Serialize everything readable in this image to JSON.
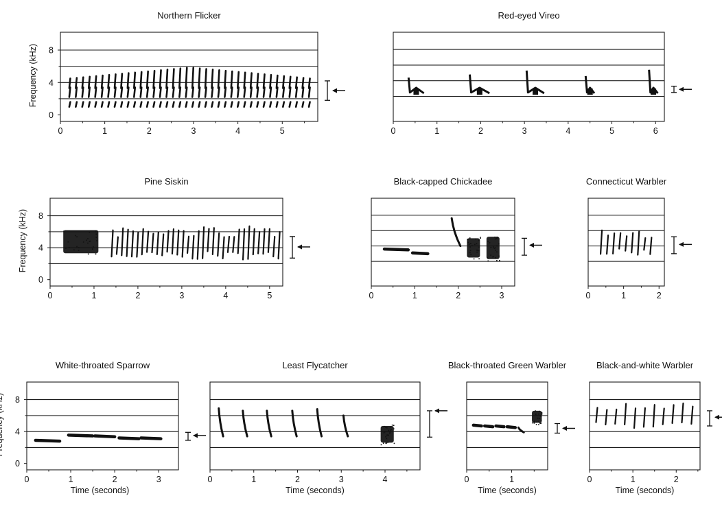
{
  "figure": {
    "ylabel": "Frequency (kHz)",
    "xlabel": "Time (seconds)",
    "colors": {
      "ink": "#111111",
      "panel_line": "#1a1a1a",
      "background": "#ffffff"
    }
  },
  "chart_data": [
    {
      "type": "spectrogram",
      "title": "Northern Flicker",
      "xlim": [
        0,
        5.8
      ],
      "ylim": [
        -0.8,
        10.2
      ],
      "xticks": [
        "0",
        "1",
        "2",
        "3",
        "4",
        "5"
      ],
      "yticks": [
        "0",
        "4",
        "8"
      ],
      "ylabel": "Frequency (kHz)",
      "xlabel": "",
      "lines": [
        2,
        4,
        6,
        8
      ],
      "range_bar": [
        1.8,
        4.2
      ],
      "arrow_at": 3.0,
      "elements": [
        {
          "kind": "repeated-notes",
          "t_start": 0.2,
          "t_end": 5.6,
          "count": 38,
          "f_low": 1.0,
          "f_high": 4.5,
          "f_peak_mid": 6.0
        }
      ]
    },
    {
      "type": "spectrogram",
      "title": "Red-eyed Vireo",
      "xlim": [
        0,
        6.2
      ],
      "ylim": [
        -1.2,
        10.2
      ],
      "xticks": [
        "0",
        "1",
        "2",
        "3",
        "4",
        "5",
        "6"
      ],
      "yticks": [],
      "ylabel": "",
      "xlabel": "",
      "lines": [
        2,
        4,
        6,
        8
      ],
      "range_bar": [
        2.5,
        3.3
      ],
      "arrow_at": 2.9,
      "elements": [
        {
          "kind": "phrase",
          "t": 0.35,
          "dur": 0.35,
          "f_low": 2.2,
          "f_high": 4.4
        },
        {
          "kind": "phrase",
          "t": 1.75,
          "dur": 0.45,
          "f_low": 2.2,
          "f_high": 4.8
        },
        {
          "kind": "phrase",
          "t": 3.05,
          "dur": 0.4,
          "f_low": 2.2,
          "f_high": 5.3
        },
        {
          "kind": "phrase",
          "t": 4.4,
          "dur": 0.2,
          "f_low": 2.2,
          "f_high": 4.6
        },
        {
          "kind": "phrase",
          "t": 5.85,
          "dur": 0.2,
          "f_low": 2.2,
          "f_high": 5.4
        }
      ]
    },
    {
      "type": "spectrogram",
      "title": "Pine Siskin",
      "xlim": [
        0,
        5.3
      ],
      "ylim": [
        -0.8,
        10.2
      ],
      "xticks": [
        "0",
        "1",
        "2",
        "3",
        "4",
        "5"
      ],
      "yticks": [
        "0",
        "4",
        "8"
      ],
      "ylabel": "Frequency (kHz)",
      "xlabel": "",
      "lines": [
        2,
        4,
        6,
        8
      ],
      "range_bar": [
        2.7,
        5.4
      ],
      "arrow_at": 4.1,
      "elements": [
        {
          "kind": "blob",
          "t": 0.3,
          "dur": 0.8,
          "f_low": 3.3,
          "f_high": 6.2
        },
        {
          "kind": "notes",
          "t_start": 1.4,
          "t_end": 5.2,
          "count": 34,
          "f_low": 2.5,
          "f_high": 6.7
        }
      ]
    },
    {
      "type": "spectrogram",
      "title": "Black-capped Chickadee",
      "xlim": [
        0,
        3.3
      ],
      "ylim": [
        -1.2,
        10.2
      ],
      "xticks": [
        "0",
        "1",
        "2",
        "3"
      ],
      "yticks": [],
      "ylabel": "",
      "xlabel": "",
      "lines": [
        2,
        4,
        6,
        8
      ],
      "range_bar": [
        2.8,
        5.0
      ],
      "arrow_at": 4.1,
      "elements": [
        {
          "kind": "whistle",
          "t": 0.3,
          "dur": 0.55,
          "f": 3.6
        },
        {
          "kind": "whistle",
          "t": 0.95,
          "dur": 0.35,
          "f": 3.1
        },
        {
          "kind": "sweep",
          "t": 1.85,
          "dur": 0.2,
          "f_low": 4.0,
          "f_high": 7.6
        },
        {
          "kind": "blob",
          "t": 2.2,
          "dur": 0.3,
          "f_low": 2.5,
          "f_high": 5.0
        },
        {
          "kind": "blob",
          "t": 2.65,
          "dur": 0.3,
          "f_low": 2.3,
          "f_high": 5.2
        }
      ]
    },
    {
      "type": "spectrogram",
      "title": "Connecticut Warbler",
      "xlim": [
        0,
        2.15
      ],
      "ylim": [
        -1.2,
        10.2
      ],
      "xticks": [
        "0",
        "1",
        "2"
      ],
      "yticks": [],
      "ylabel": "",
      "xlabel": "",
      "lines": [
        2,
        4,
        6,
        8
      ],
      "range_bar": [
        3.0,
        5.2
      ],
      "arrow_at": 4.2,
      "elements": [
        {
          "kind": "notes",
          "t_start": 0.35,
          "t_end": 1.75,
          "count": 9,
          "f_low": 2.8,
          "f_high": 6.2
        }
      ]
    },
    {
      "type": "spectrogram",
      "title": "White-throated Sparrow",
      "xlim": [
        0,
        3.45
      ],
      "ylim": [
        -0.8,
        10.2
      ],
      "xticks": [
        "0",
        "1",
        "2",
        "3"
      ],
      "yticks": [
        "0",
        "4",
        "8"
      ],
      "ylabel": "Frequency (kHz)",
      "xlabel": "Time (seconds)",
      "lines": [
        2,
        4,
        6,
        8
      ],
      "range_bar": [
        2.9,
        3.9
      ],
      "arrow_at": 3.5,
      "elements": [
        {
          "kind": "whistle",
          "t": 0.2,
          "dur": 0.55,
          "f": 2.9
        },
        {
          "kind": "whistle",
          "t": 0.95,
          "dur": 0.55,
          "f": 3.55
        },
        {
          "kind": "whistle",
          "t": 1.55,
          "dur": 0.45,
          "f": 3.45
        },
        {
          "kind": "whistle",
          "t": 2.1,
          "dur": 0.45,
          "f": 3.2
        },
        {
          "kind": "whistle",
          "t": 2.6,
          "dur": 0.45,
          "f": 3.2
        }
      ]
    },
    {
      "type": "spectrogram",
      "title": "Least Flycatcher",
      "xlim": [
        0,
        4.8
      ],
      "ylim": [
        -0.8,
        10.2
      ],
      "xticks": [
        "0",
        "1",
        "2",
        "3",
        "4"
      ],
      "yticks": [],
      "ylabel": "",
      "xlabel": "Time (seconds)",
      "lines": [
        2,
        4,
        6,
        8
      ],
      "range_bar": [
        3.3,
        6.6
      ],
      "arrow_at": 6.6,
      "elements": [
        {
          "kind": "sweep",
          "t": 0.2,
          "dur": 0.1,
          "f_low": 3.4,
          "f_high": 6.9
        },
        {
          "kind": "sweep",
          "t": 0.75,
          "dur": 0.1,
          "f_low": 3.4,
          "f_high": 6.6
        },
        {
          "kind": "sweep",
          "t": 1.3,
          "dur": 0.1,
          "f_low": 3.4,
          "f_high": 6.6
        },
        {
          "kind": "sweep",
          "t": 1.88,
          "dur": 0.1,
          "f_low": 3.4,
          "f_high": 6.6
        },
        {
          "kind": "sweep",
          "t": 2.45,
          "dur": 0.1,
          "f_low": 3.4,
          "f_high": 6.8
        },
        {
          "kind": "sweep",
          "t": 3.05,
          "dur": 0.1,
          "f_low": 3.4,
          "f_high": 6.0
        },
        {
          "kind": "blob",
          "t": 3.9,
          "dur": 0.3,
          "f_low": 2.6,
          "f_high": 4.7
        }
      ]
    },
    {
      "type": "spectrogram",
      "title": "Black-throated Green Warbler",
      "xlim": [
        0,
        1.8
      ],
      "ylim": [
        -0.8,
        10.2
      ],
      "xticks": [
        "0",
        "1"
      ],
      "yticks": [],
      "ylabel": "",
      "xlabel": "Time (seconds)",
      "lines": [
        2,
        4,
        6,
        8
      ],
      "range_bar": [
        3.8,
        5.0
      ],
      "arrow_at": 4.4,
      "elements": [
        {
          "kind": "whistle",
          "t": 0.15,
          "dur": 0.18,
          "f": 4.8
        },
        {
          "kind": "whistle",
          "t": 0.4,
          "dur": 0.18,
          "f": 4.7
        },
        {
          "kind": "whistle",
          "t": 0.65,
          "dur": 0.18,
          "f": 4.7
        },
        {
          "kind": "whistle",
          "t": 0.9,
          "dur": 0.18,
          "f": 4.6
        },
        {
          "kind": "sweep",
          "t": 1.15,
          "dur": 0.12,
          "f_low": 3.9,
          "f_high": 4.5
        },
        {
          "kind": "blob",
          "t": 1.45,
          "dur": 0.22,
          "f_low": 5.1,
          "f_high": 6.6
        }
      ]
    },
    {
      "type": "spectrogram",
      "title": "Black-and-white Warbler",
      "xlim": [
        0,
        2.55
      ],
      "ylim": [
        -0.8,
        10.2
      ],
      "xticks": [
        "0",
        "1",
        "2"
      ],
      "yticks": [],
      "ylabel": "",
      "xlabel": "Time (seconds)",
      "lines": [
        2,
        4,
        6,
        8
      ],
      "range_bar": [
        4.7,
        6.6
      ],
      "arrow_at": 5.8,
      "elements": [
        {
          "kind": "notes",
          "t_start": 0.15,
          "t_end": 2.35,
          "count": 11,
          "f_low": 4.4,
          "f_high": 7.6
        }
      ]
    }
  ]
}
